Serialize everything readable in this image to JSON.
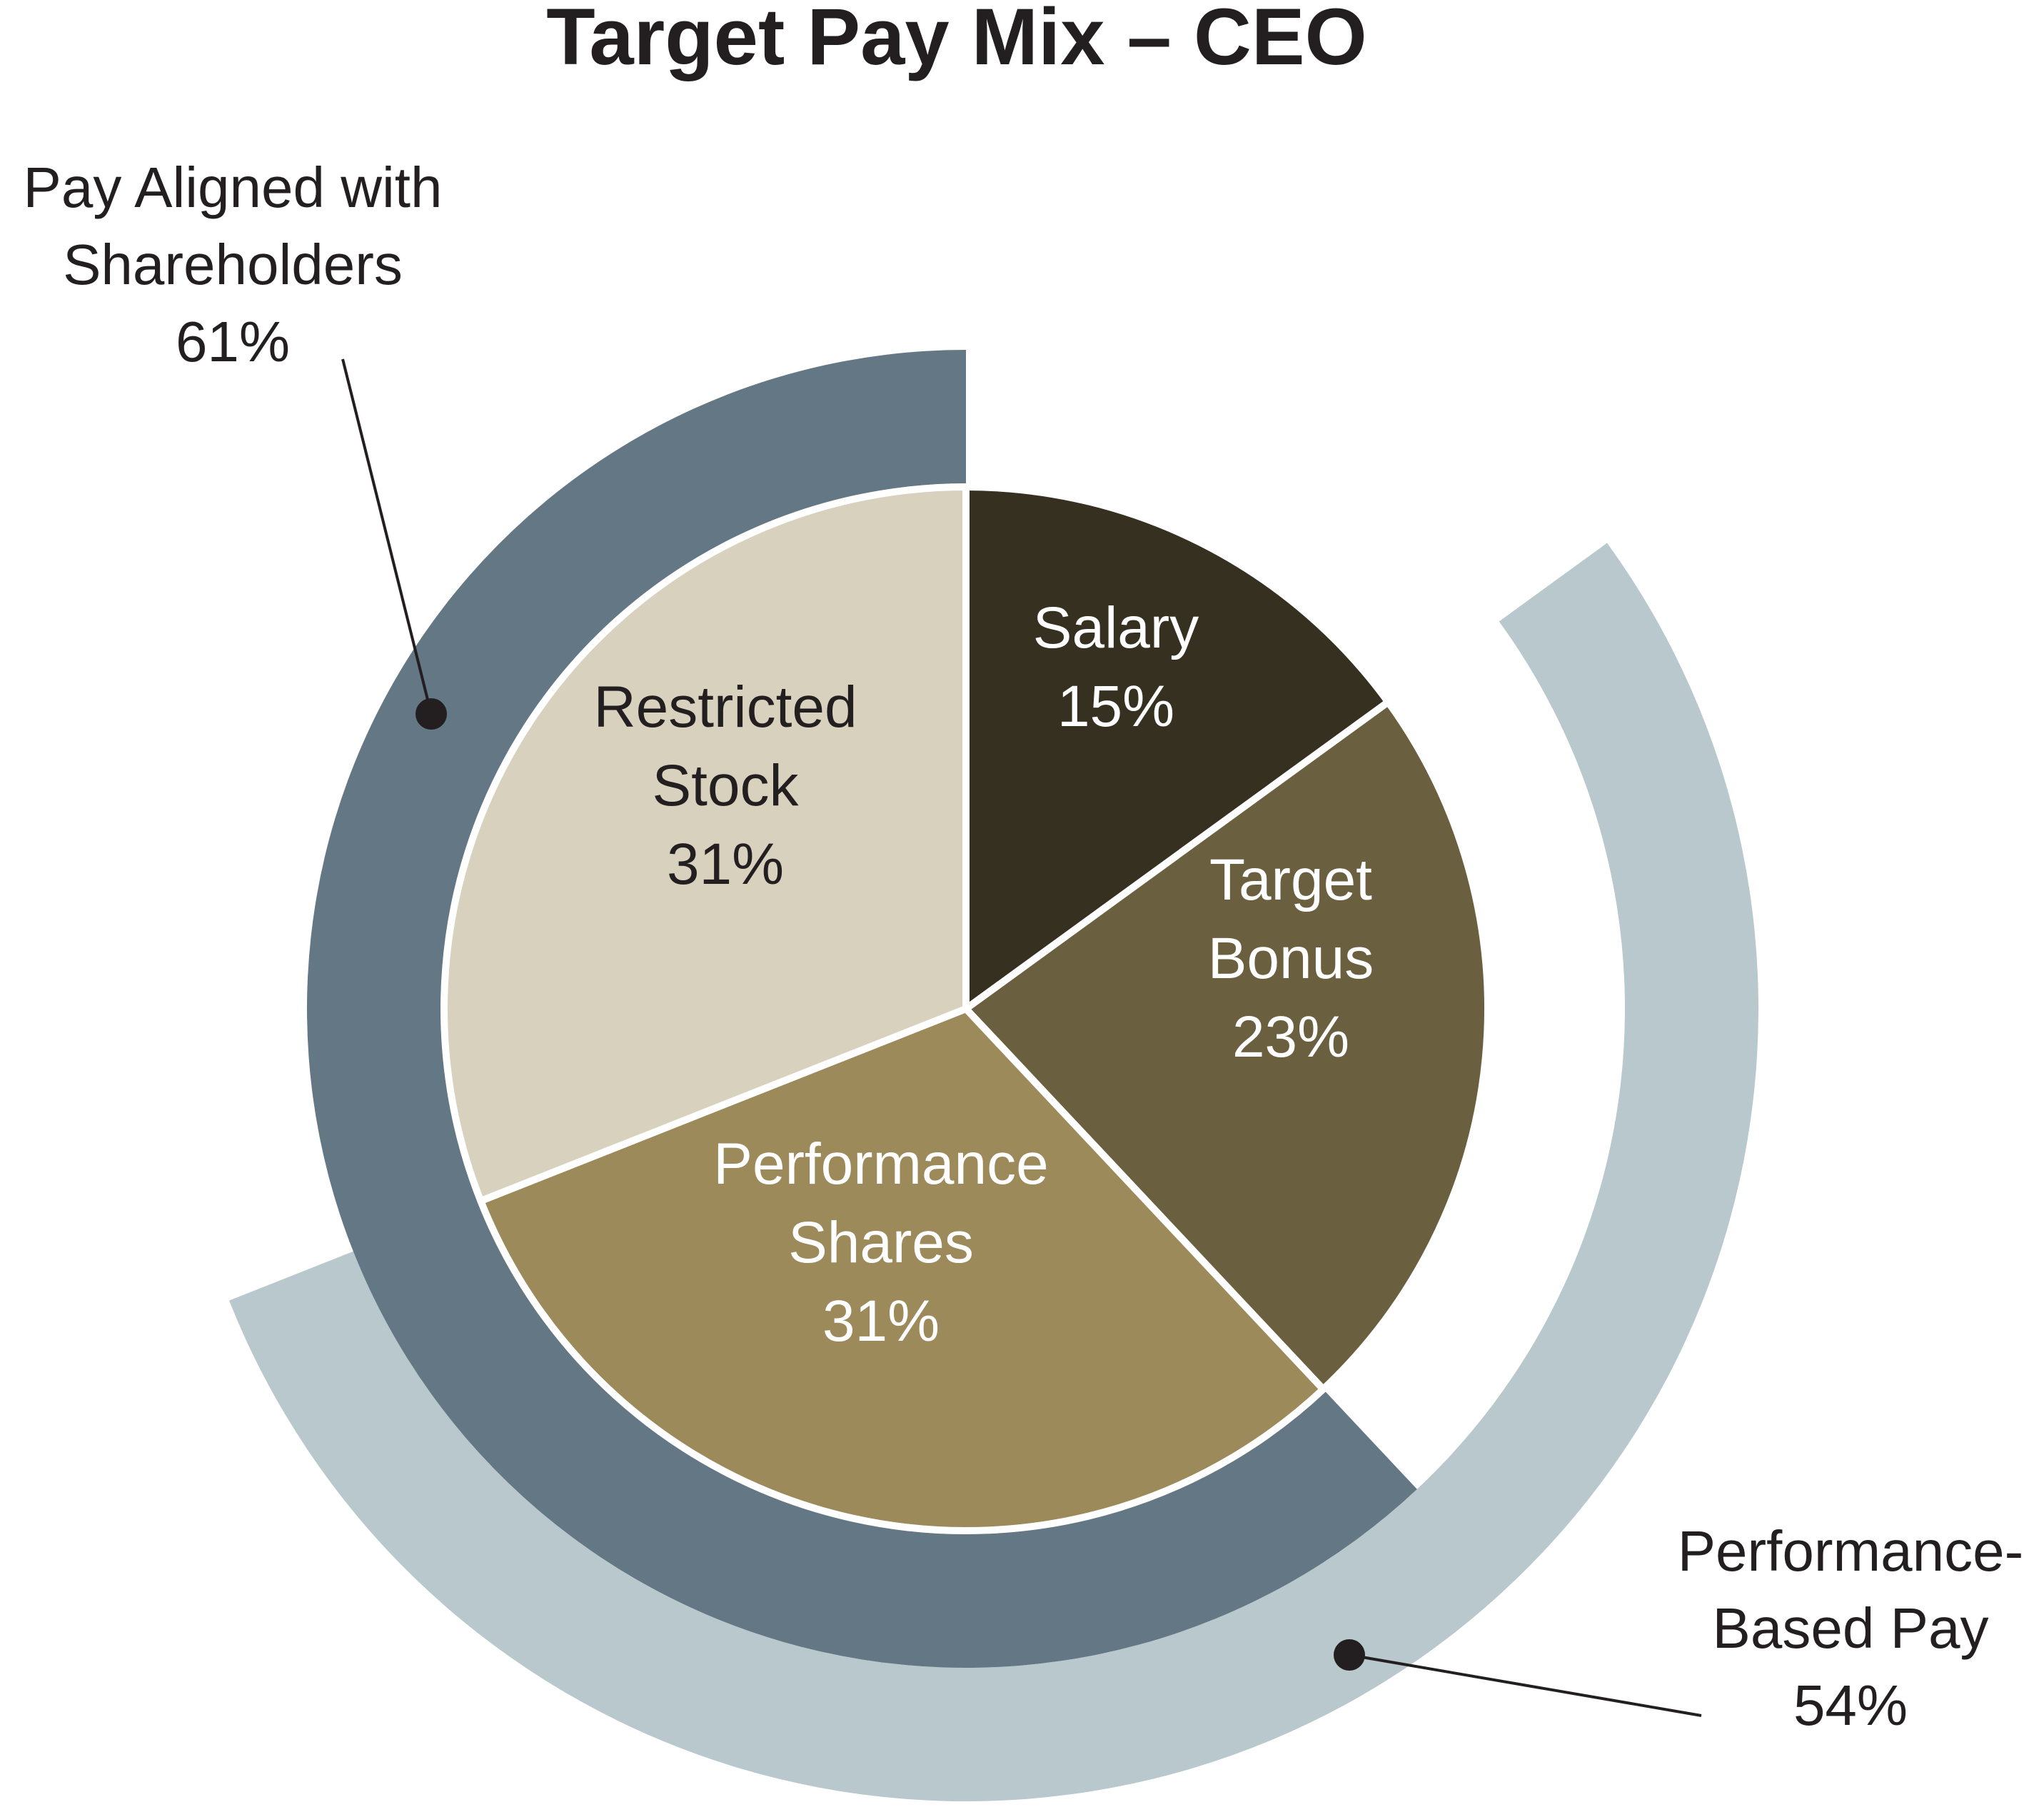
{
  "title": "Target Pay Mix – CEO",
  "chart_data": {
    "type": "pie",
    "title": "Target Pay Mix – CEO",
    "slices": [
      {
        "label": [
          "Salary"
        ],
        "value": 15,
        "value_label": "15%",
        "color": "#363021",
        "text_color": "#ffffff"
      },
      {
        "label": [
          "Target",
          "Bonus"
        ],
        "value": 23,
        "value_label": "23%",
        "color": "#6a5f3e",
        "text_color": "#ffffff"
      },
      {
        "label": [
          "Performance",
          "Shares"
        ],
        "value": 31,
        "value_label": "31%",
        "color": "#9c8a5a",
        "text_color": "#ffffff"
      },
      {
        "label": [
          "Restricted",
          "Stock"
        ],
        "value": 31,
        "value_label": "31%",
        "color": "#d8d1bd",
        "text_color": "#231f20"
      }
    ],
    "outer_rings": [
      {
        "label": [
          "Pay Aligned with",
          "Shareholders"
        ],
        "value": 61,
        "value_label": "61%",
        "color": "#647784",
        "covers": [
          "Performance Shares",
          "Restricted Stock"
        ]
      },
      {
        "label": [
          "Performance-",
          "Based Pay"
        ],
        "value": 54,
        "value_label": "54%",
        "color": "#b8c8cd",
        "covers": [
          "Target Bonus",
          "Performance Shares"
        ]
      }
    ]
  }
}
